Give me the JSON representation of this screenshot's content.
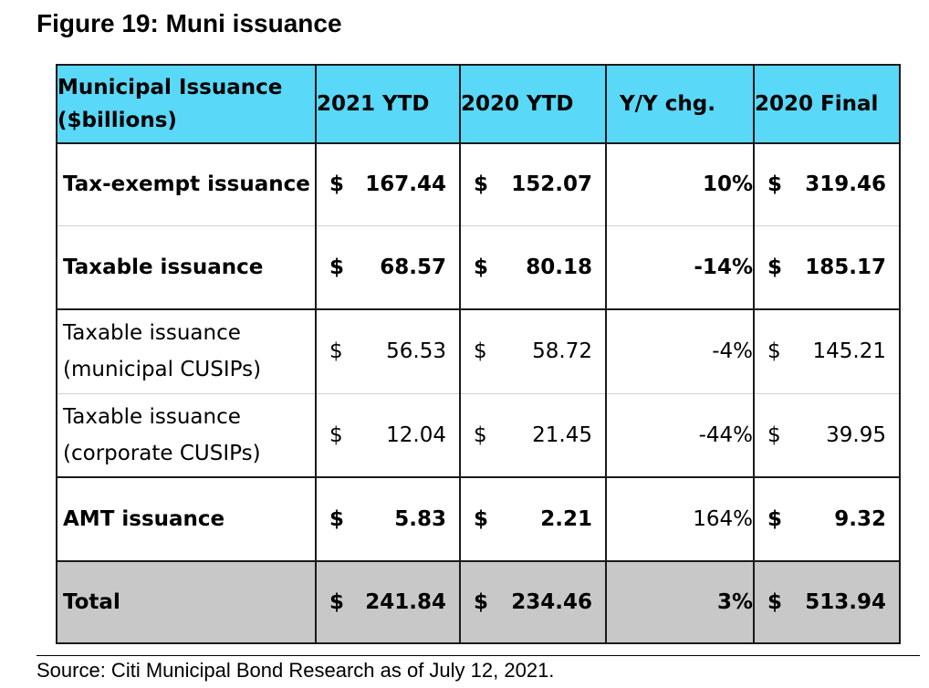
{
  "title": "Figure 19: Muni issuance",
  "table": {
    "header": {
      "label_line1": "Municipal Issuance",
      "label_line2": "($billions)",
      "col_2021_ytd": "2021 YTD",
      "col_2020_ytd": "2020 YTD",
      "col_yy": "Y/Y chg.",
      "col_2020_final": "2020 Final"
    },
    "currency": "$",
    "rows": [
      {
        "label1": "Tax-exempt issuance",
        "label2": "",
        "v2021": "167.44",
        "v2020": "152.07",
        "yy": "10%",
        "final": "319.46"
      },
      {
        "label1": "Taxable issuance",
        "label2": "",
        "v2021": "68.57",
        "v2020": "80.18",
        "yy": "-14%",
        "final": "185.17"
      },
      {
        "label1": "Taxable issuance",
        "label2": "(municipal CUSIPs)",
        "v2021": "56.53",
        "v2020": "58.72",
        "yy": "-4%",
        "final": "145.21"
      },
      {
        "label1": "Taxable issuance",
        "label2": "(corporate CUSIPs)",
        "v2021": "12.04",
        "v2020": "21.45",
        "yy": "-44%",
        "final": "39.95"
      },
      {
        "label1": "AMT issuance",
        "label2": "",
        "v2021": "5.83",
        "v2020": "2.21",
        "yy": "164%",
        "final": "9.32"
      },
      {
        "label1": "Total",
        "label2": "",
        "v2021": "241.84",
        "v2020": "234.46",
        "yy": "3%",
        "final": "513.94"
      }
    ]
  },
  "source": "Source: Citi Municipal Bond Research as of July 12, 2021."
}
